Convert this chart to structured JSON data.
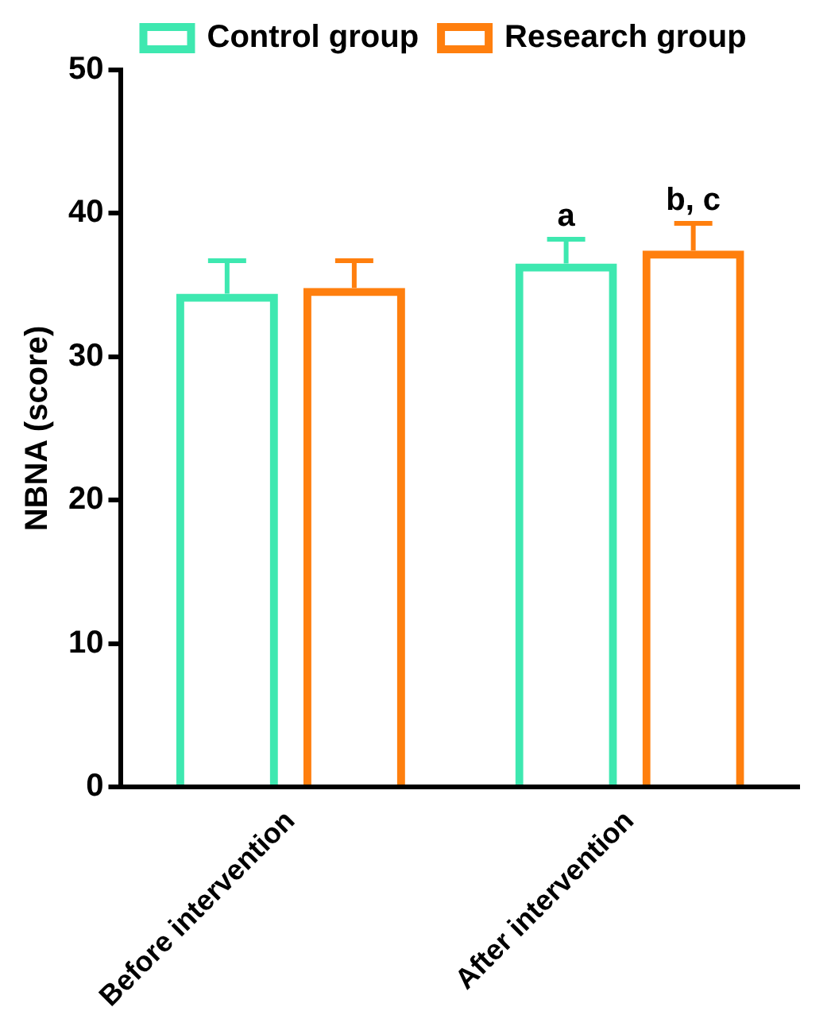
{
  "chart_data": {
    "type": "bar",
    "ylabel": "NBNA (score)",
    "categories": [
      "Before intervention",
      "After intervention"
    ],
    "series": [
      {
        "name": "Control group",
        "color": "#3ee8b0",
        "values": [
          34.4,
          36.5
        ],
        "errors": [
          2.3,
          1.7
        ]
      },
      {
        "name": "Research group",
        "color": "#ff7f0e",
        "values": [
          34.8,
          37.4
        ],
        "errors": [
          1.9,
          1.9
        ]
      }
    ],
    "ylim": [
      0,
      50
    ],
    "yticks": [
      0,
      10,
      20,
      30,
      40,
      50
    ],
    "grid": false,
    "legend": "top left",
    "annotations": [
      "a",
      "b, c"
    ]
  }
}
